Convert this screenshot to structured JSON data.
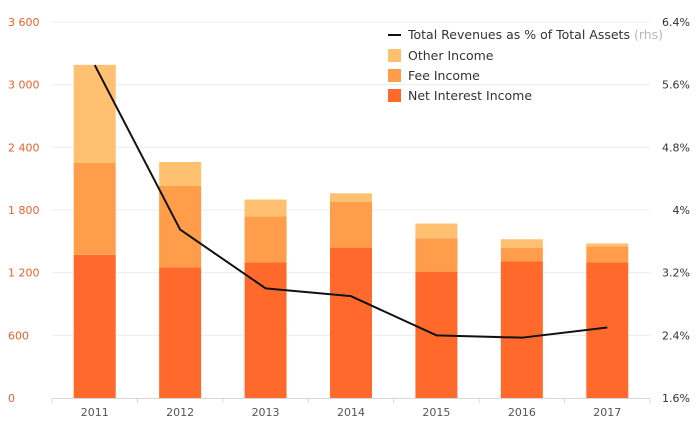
{
  "chart_data": {
    "type": "bar",
    "stacked": true,
    "categories": [
      "2011",
      "2012",
      "2013",
      "2014",
      "2015",
      "2016",
      "2017"
    ],
    "series": [
      {
        "name": "Net Interest Income",
        "color": "#ff6a2c",
        "values": [
          1370,
          1250,
          1300,
          1440,
          1210,
          1310,
          1300
        ]
      },
      {
        "name": "Fee Income",
        "color": "#ff9d4a",
        "values": [
          880,
          780,
          440,
          440,
          320,
          130,
          150
        ]
      },
      {
        "name": "Other Income",
        "color": "#ffc171",
        "values": [
          940,
          230,
          160,
          80,
          140,
          80,
          30
        ]
      }
    ],
    "line_series": {
      "name": "Total Revenues as % of Total Assets",
      "note": "(rhs)",
      "color": "#111111",
      "axis": "right",
      "values": [
        5.85,
        3.75,
        3.0,
        2.9,
        2.4,
        2.37,
        2.5
      ]
    },
    "ylim": [
      0,
      3600
    ],
    "yticks": [
      0,
      600,
      1200,
      1800,
      2400,
      3000,
      3600
    ],
    "ytick_labels": [
      "0",
      "600",
      "1 200",
      "1 800",
      "2 400",
      "3 000",
      "3 600"
    ],
    "y2lim": [
      1.6,
      6.4
    ],
    "y2ticks": [
      1.6,
      2.4,
      3.2,
      4.0,
      4.8,
      5.6,
      6.4
    ],
    "y2tick_labels": [
      "1.6%",
      "2.4%",
      "3.2%",
      "4%",
      "4.8%",
      "5.6%",
      "6.4%"
    ],
    "legend_position": "top-right",
    "grid": true,
    "title": "",
    "xlabel": "",
    "ylabel": ""
  },
  "colors": {
    "grid": "#ececec",
    "axis": "#d8d8d8",
    "left_tick": "#e8622c"
  }
}
